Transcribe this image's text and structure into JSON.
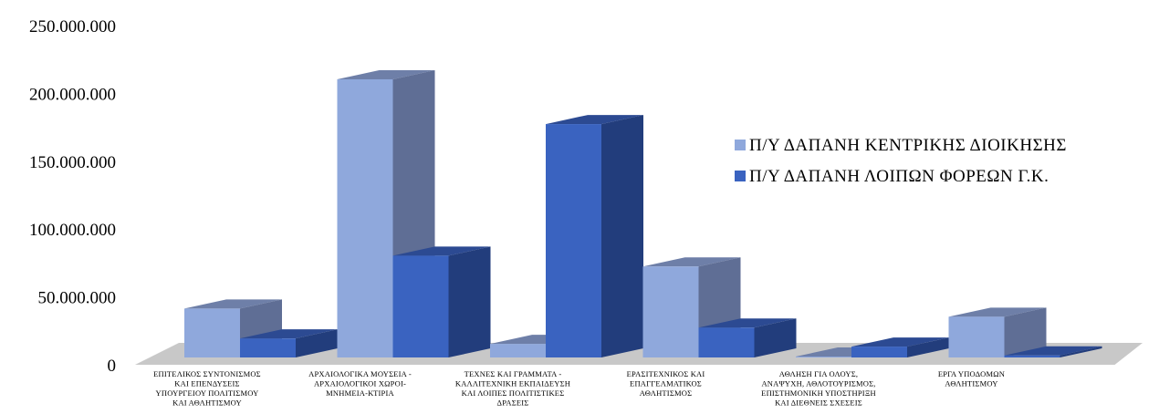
{
  "chart_data": {
    "type": "bar",
    "style": "3d-clustered-column",
    "categories": [
      [
        "ΕΠΙΤΕΛΙΚΟΣ ΣΥΝΤΟΝΙΣΜΟΣ",
        "ΚΑΙ ΕΠΕΝΔΥΣΕΙΣ",
        "ΥΠΟΥΡΓΕΙΟΥ ΠΟΛΙΤΙΣΜΟΥ",
        "ΚΑΙ ΑΘΛΗΤΙΣΜΟΥ"
      ],
      [
        "ΑΡΧΑΙΟΛΟΓΙΚΑ ΜΟΥΣΕΙΑ -",
        "ΑΡΧΑΙΟΛΟΓΙΚΟΙ ΧΩΡΟΙ-",
        "ΜΝΗΜΕΙΑ-ΚΤΙΡΙΑ"
      ],
      [
        "ΤΕΧΝΕΣ ΚΑΙ ΓΡΑΜΜΑΤΑ -",
        "ΚΑΛΛΙΤΕΧΝΙΚΗ ΕΚΠΑΙΔΕΥΣΗ",
        "ΚΑΙ ΛΟΙΠΕΣ ΠΟΛΙΤΙΣΤΙΚΕΣ",
        "ΔΡΑΣΕΙΣ"
      ],
      [
        "ΕΡΑΣΙΤΕΧΝΙΚΟΣ ΚΑΙ",
        "ΕΠΑΓΓΕΛΜΑΤΙΚΟΣ",
        "ΑΘΛΗΤΙΣΜΟΣ"
      ],
      [
        "ΑΘΛΗΣΗ ΓΙΑ ΟΛΟΥΣ,",
        "ΑΝΑΨΥΧΗ, ΑΘΛΟΤΟΥΡΙΣΜΟΣ,",
        "ΕΠΙΣΤΗΜΟΝΙΚΗ ΥΠΟΣΤΗΡΙΞΗ",
        "ΚΑΙ ΔΙΕΘΝΕΙΣ ΣΧΕΣΕΙΣ"
      ],
      [
        "ΕΡΓΑ ΥΠΟΔΟΜΩΝ",
        "ΑΘΛΗΤΙΣΜΟΥ"
      ]
    ],
    "series": [
      {
        "name": "Π/Υ ΔΑΠΑΝΗ ΚΕΝΤΡΙΚΗΣ ΔΙΟΙΚΗΣΗΣ",
        "values": [
          36000000,
          205000000,
          10000000,
          67000000,
          0,
          30000000
        ],
        "color": "#8FA8DC",
        "side_color": "#5F6E95",
        "top_color": "#6E7FA8"
      },
      {
        "name": "Π/Υ ΔΑΠΑΝΗ ΛΟΙΠΩΝ ΦΟΡΕΩΝ Γ.Κ.",
        "values": [
          14000000,
          75000000,
          172000000,
          22000000,
          8000000,
          1500000
        ],
        "color": "#3A63C0",
        "side_color": "#223D7C",
        "top_color": "#2C4A92"
      }
    ],
    "yticks": [
      "0",
      "50.000.000",
      "100.000.000",
      "150.000.000",
      "200.000.000",
      "250.000.000"
    ],
    "ylim": [
      0,
      250000000
    ],
    "grid": false,
    "legend_position": "right",
    "floor_color": "#C8C8C8"
  }
}
